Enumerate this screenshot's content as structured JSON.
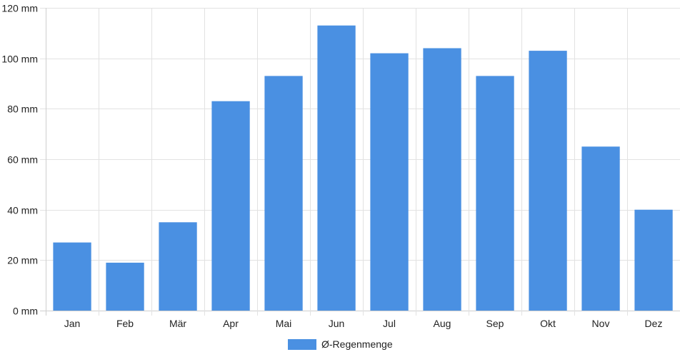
{
  "chart_data": {
    "type": "bar",
    "categories": [
      "Jan",
      "Feb",
      "Mär",
      "Apr",
      "Mai",
      "Jun",
      "Jul",
      "Aug",
      "Sep",
      "Okt",
      "Nov",
      "Dez"
    ],
    "series": [
      {
        "name": "Ø-Regenmenge",
        "values": [
          27,
          19,
          35,
          83,
          93,
          113,
          102,
          104,
          93,
          103,
          65,
          40
        ],
        "color": "#4a90e2"
      }
    ],
    "y_unit": "mm",
    "ylim": [
      0,
      120
    ],
    "y_ticks": [
      0,
      20,
      40,
      60,
      80,
      100,
      120
    ],
    "y_tick_labels": [
      "0 mm",
      "20 mm",
      "40 mm",
      "60 mm",
      "80 mm",
      "100 mm",
      "120 mm"
    ],
    "grid": true,
    "legend_position": "bottom-center"
  }
}
